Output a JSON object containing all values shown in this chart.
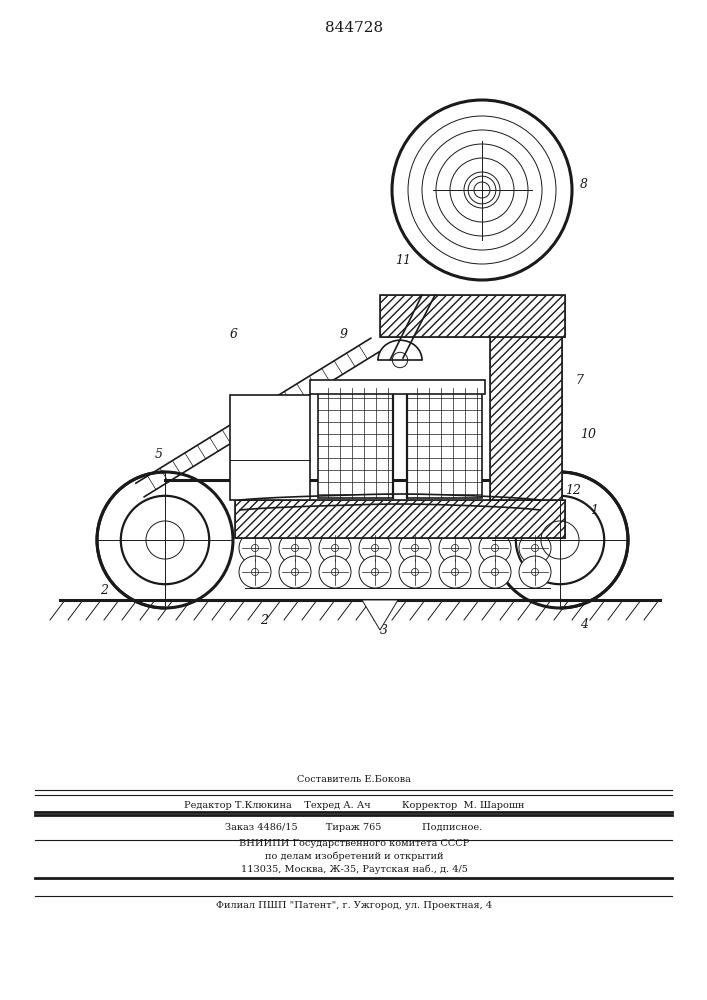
{
  "title": "844728",
  "bg_color": "#ffffff",
  "line_color": "#1a1a1a",
  "footer_lines": [
    "Составитель Е.Бокова",
    "Редактор Т.Клюкина    Техред А. Ач          Корректор  М. Шарошн",
    "Заказ 4486/15         Тираж 765             Подписное.",
    "ВНИИПИ Государственного комитета СССР",
    "по делам изобретений и открытий",
    "113035, Москва, Ж-35, Раутская наб., д. 4/5",
    "Филиал ПШП \"Патент\", г. Ужгород, ул. Проектная, 4"
  ]
}
